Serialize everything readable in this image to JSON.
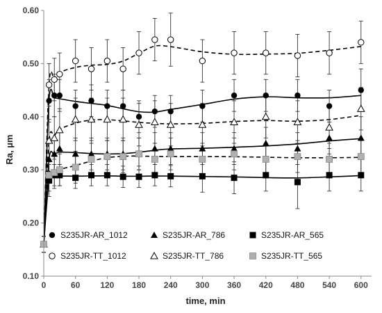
{
  "chart_data": {
    "type": "scatter",
    "title": "",
    "xlabel": "time, min",
    "ylabel": "Ra, µm",
    "xlim": [
      0,
      620
    ],
    "ylim": [
      0.1,
      0.6
    ],
    "xticks": [
      0,
      60,
      120,
      180,
      240,
      300,
      360,
      420,
      480,
      540,
      600
    ],
    "yticks": [
      0.1,
      0.2,
      0.3,
      0.4,
      0.5,
      0.6
    ],
    "xtick_labels": [
      "0",
      "60",
      "120",
      "180",
      "240",
      "300",
      "360",
      "420",
      "480",
      "540",
      "600"
    ],
    "ytick_labels": [
      "0.10",
      "0.20",
      "0.30",
      "0.40",
      "0.50",
      "0.60"
    ],
    "grid": false,
    "legend_position": "bottom",
    "x": [
      0,
      10,
      20,
      30,
      60,
      90,
      120,
      150,
      180,
      210,
      240,
      300,
      360,
      420,
      480,
      540,
      600
    ],
    "series": [
      {
        "name": "S235JR-AR_1012",
        "marker": "filled-circle",
        "color": "#000000",
        "fit_line": "solid",
        "y": [
          0.16,
          0.43,
          0.44,
          0.44,
          0.42,
          0.43,
          0.42,
          0.42,
          0.4,
          0.41,
          0.41,
          0.42,
          0.44,
          0.44,
          0.44,
          0.42,
          0.45
        ],
        "error": [
          0.015,
          0.04,
          0.04,
          0.03,
          0.03,
          0.03,
          0.03,
          0.03,
          0.03,
          0.03,
          0.03,
          0.03,
          0.03,
          0.03,
          0.03,
          0.03,
          0.04
        ]
      },
      {
        "name": "S235JR-AR_786",
        "marker": "filled-triangle",
        "color": "#000000",
        "fit_line": "solid",
        "y": [
          0.16,
          0.32,
          0.33,
          0.34,
          0.33,
          0.33,
          0.33,
          0.33,
          0.33,
          0.34,
          0.34,
          0.34,
          0.34,
          0.35,
          0.34,
          0.36,
          0.36
        ],
        "error": [
          0.015,
          0.04,
          0.03,
          0.03,
          0.03,
          0.03,
          0.03,
          0.03,
          0.03,
          0.03,
          0.03,
          0.03,
          0.03,
          0.03,
          0.03,
          0.03,
          0.04
        ]
      },
      {
        "name": "S235JR-AR_565",
        "marker": "filled-square",
        "color": "#000000",
        "fit_line": "solid",
        "y": [
          0.16,
          0.28,
          0.29,
          0.29,
          0.285,
          0.29,
          0.29,
          0.287,
          0.287,
          0.29,
          0.288,
          0.288,
          0.285,
          0.29,
          0.277,
          0.29,
          0.29
        ],
        "error": [
          0.015,
          0.03,
          0.02,
          0.02,
          0.02,
          0.02,
          0.02,
          0.02,
          0.02,
          0.02,
          0.02,
          0.03,
          0.03,
          0.03,
          0.05,
          0.03,
          0.03
        ]
      },
      {
        "name": "S235JR-TT_1012",
        "marker": "open-circle",
        "color": "#000000",
        "fit_line": "dashed",
        "y": [
          0.16,
          0.46,
          0.47,
          0.48,
          0.505,
          0.49,
          0.505,
          0.49,
          0.52,
          0.545,
          0.545,
          0.505,
          0.52,
          0.52,
          0.515,
          0.52,
          0.54
        ],
        "error": [
          0.015,
          0.04,
          0.04,
          0.04,
          0.04,
          0.04,
          0.04,
          0.04,
          0.04,
          0.04,
          0.05,
          0.04,
          0.04,
          0.04,
          0.04,
          0.04,
          0.04
        ]
      },
      {
        "name": "S235JR-TT_786",
        "marker": "open-triangle",
        "color": "#000000",
        "fit_line": "dashed",
        "y": [
          0.16,
          0.355,
          0.36,
          0.375,
          0.395,
          0.395,
          0.395,
          0.395,
          0.385,
          0.39,
          0.385,
          0.385,
          0.39,
          0.4,
          0.39,
          0.38,
          0.415
        ],
        "error": [
          0.015,
          0.04,
          0.04,
          0.04,
          0.04,
          0.04,
          0.04,
          0.04,
          0.04,
          0.04,
          0.04,
          0.04,
          0.04,
          0.04,
          0.04,
          0.04,
          0.04
        ]
      },
      {
        "name": "S235JR-TT_565",
        "marker": "grey-square",
        "color": "#b0b0b0",
        "fit_line": "dashed",
        "y": [
          0.16,
          0.29,
          0.295,
          0.3,
          0.305,
          0.32,
          0.325,
          0.325,
          0.33,
          0.32,
          0.33,
          0.32,
          0.33,
          0.32,
          0.325,
          0.32,
          0.325
        ],
        "error": [
          0.015,
          0.03,
          0.03,
          0.03,
          0.03,
          0.03,
          0.03,
          0.03,
          0.03,
          0.03,
          0.03,
          0.03,
          0.03,
          0.03,
          0.03,
          0.03,
          0.03
        ]
      }
    ]
  }
}
